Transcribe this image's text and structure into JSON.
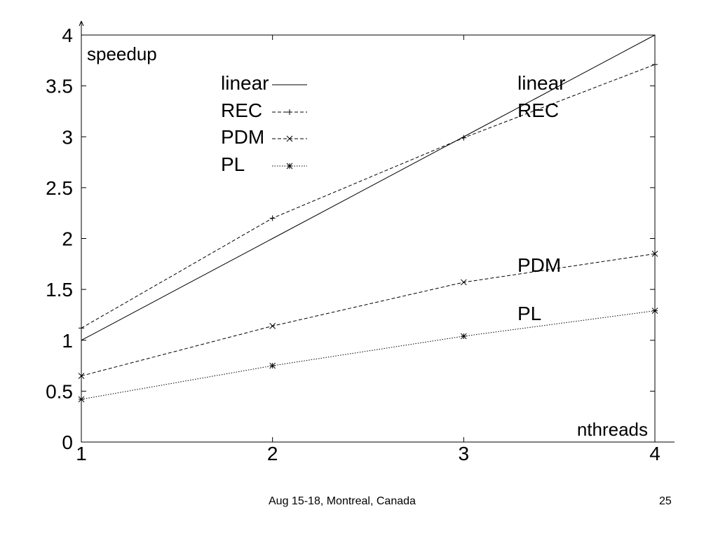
{
  "slide": {
    "footer_text": "Aug 15-18, Montreal, Canada",
    "page_number": "25"
  },
  "chart_data": {
    "type": "line",
    "xlabel": "nthreads",
    "ylabel": "speedup",
    "xlim": [
      1,
      4
    ],
    "ylim": [
      0,
      4
    ],
    "x_ticks": [
      "1",
      "2",
      "3",
      "4"
    ],
    "y_ticks": [
      "0",
      "0.5",
      "1",
      "1.5",
      "2",
      "2.5",
      "3",
      "3.5",
      "4"
    ],
    "x": [
      1,
      2,
      3,
      4
    ],
    "grid": false,
    "legend_position": "top-center",
    "series": [
      {
        "name": "linear",
        "values": [
          1,
          2,
          3,
          4
        ],
        "marker": "none",
        "dash": "solid",
        "end_label": "linear"
      },
      {
        "name": "REC",
        "values": [
          1.12,
          2.2,
          2.99,
          3.71
        ],
        "marker": "plus",
        "dash": "dashed",
        "end_label": "REC"
      },
      {
        "name": "PDM",
        "values": [
          0.65,
          1.14,
          1.57,
          1.85
        ],
        "marker": "cross",
        "dash": "dashed",
        "end_label": "PDM"
      },
      {
        "name": "PL",
        "values": [
          0.42,
          0.75,
          1.04,
          1.29
        ],
        "marker": "star",
        "dash": "dotted",
        "end_label": "PL"
      }
    ]
  }
}
